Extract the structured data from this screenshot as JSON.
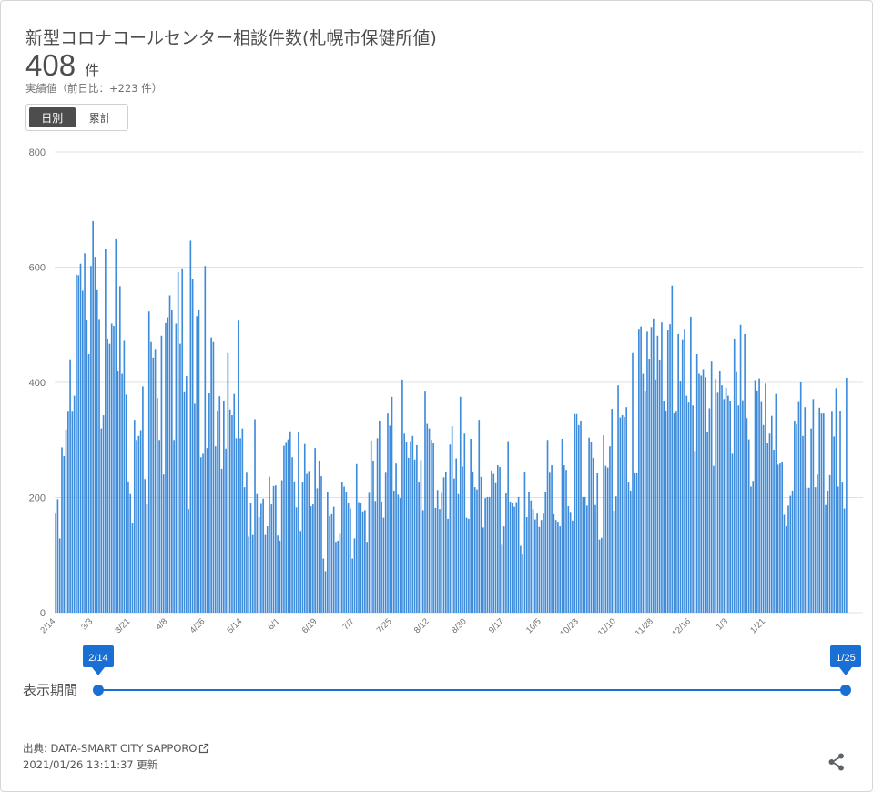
{
  "title": "新型コロナコールセンター相談件数(札幌市保健所値)",
  "summary": {
    "value": "408",
    "unit": "件",
    "subtitle": "実績値（前日比：+223 件）"
  },
  "toggle": {
    "daily": "日別",
    "cumulative": "累計"
  },
  "slider": {
    "label": "表示期間",
    "start": "2/14",
    "end": "1/25"
  },
  "footer": {
    "source": "出典: DATA-SMART CITY SAPPORO",
    "updated": "2021/01/26 13:11:37 更新"
  },
  "icons": {
    "external": "external-link-icon",
    "share": "share-icon"
  },
  "colors": {
    "bar": "#3d8bdb",
    "slider": "#1a6fd4",
    "toggle_active": "#4d4d4d"
  },
  "chart_data": {
    "type": "bar",
    "title": "",
    "xlabel": "",
    "ylabel": "",
    "ylim": [
      0,
      800
    ],
    "y_ticks": [
      0,
      200,
      400,
      600,
      800
    ],
    "x_tick_labels": [
      "2/14",
      "3/3",
      "3/21",
      "4/8",
      "4/26",
      "5/14",
      "6/1",
      "6/19",
      "7/7",
      "7/25",
      "8/12",
      "8/30",
      "9/17",
      "10/5",
      "10/23",
      "11/10",
      "11/28",
      "12/16",
      "1/3",
      "1/21"
    ],
    "x_tick_interval_days": 18,
    "grid": true,
    "series": [
      {
        "values": [
          172,
          197,
          129,
          287,
          272,
          318,
          349,
          440,
          349,
          377,
          587,
          586,
          606,
          559,
          624,
          508,
          449,
          602,
          680,
          618,
          560,
          510,
          320,
          343,
          632,
          476,
          467,
          502,
          498,
          650,
          420,
          567,
          415,
          472,
          379,
          228,
          206,
          156,
          335,
          300,
          307,
          317,
          393,
          232,
          188,
          523,
          470,
          443,
          458,
          373,
          300,
          481,
          240,
          503,
          513,
          551,
          525,
          300,
          502,
          591,
          467,
          598,
          383,
          411,
          180,
          646,
          579,
          363,
          515,
          525,
          270,
          276,
          602,
          286,
          381,
          478,
          470,
          289,
          351,
          376,
          250,
          368,
          285,
          451,
          353,
          343,
          380,
          303,
          507,
          303,
          320,
          218,
          243,
          132,
          190,
          135,
          336,
          206,
          166,
          189,
          198,
          135,
          150,
          236,
          188,
          220,
          221,
          134,
          125,
          230,
          290,
          295,
          301,
          315,
          270,
          228,
          183,
          314,
          142,
          226,
          293,
          241,
          246,
          185,
          188,
          286,
          216,
          264,
          237,
          94,
          72,
          209,
          168,
          171,
          184,
          123,
          125,
          137,
          227,
          219,
          210,
          191,
          181,
          94,
          129,
          258,
          192,
          191,
          176,
          178,
          123,
          208,
          299,
          264,
          194,
          303,
          333,
          193,
          165,
          243,
          346,
          325,
          375,
          212,
          259,
          205,
          199,
          405,
          311,
          296,
          269,
          298,
          307,
          266,
          291,
          226,
          265,
          178,
          384,
          328,
          320,
          300,
          294,
          182,
          213,
          180,
          208,
          235,
          244,
          163,
          292,
          324,
          233,
          268,
          206,
          375,
          254,
          311,
          165,
          163,
          302,
          244,
          218,
          214,
          335,
          236,
          148,
          199,
          201,
          201,
          247,
          241,
          225,
          256,
          253,
          118,
          150,
          207,
          298,
          193,
          190,
          184,
          192,
          201,
          116,
          101,
          245,
          166,
          209,
          195,
          180,
          162,
          172,
          149,
          161,
          172,
          209,
          300,
          243,
          256,
          171,
          161,
          158,
          150,
          302,
          256,
          248,
          185,
          175,
          160,
          345,
          345,
          326,
          333,
          201,
          201,
          186,
          304,
          297,
          269,
          187,
          242,
          127,
          130,
          308,
          255,
          252,
          289,
          354,
          177,
          202,
          395,
          339,
          343,
          340,
          357,
          226,
          212,
          451,
          242,
          242,
          493,
          497,
          415,
          385,
          488,
          441,
          496,
          511,
          405,
          481,
          438,
          504,
          368,
          351,
          490,
          501,
          568,
          346,
          349,
          484,
          402,
          475,
          493,
          377,
          365,
          514,
          360,
          281,
          449,
          415,
          412,
          423,
          409,
          314,
          355,
          436,
          255,
          406,
          382,
          420,
          395,
          371,
          391,
          377,
          367,
          276,
          476,
          418,
          360,
          500,
          369,
          484,
          338,
          301,
          219,
          229,
          404,
          386,
          407,
          366,
          326,
          398,
          294,
          311,
          342,
          283,
          380,
          257,
          259,
          261,
          170,
          150,
          186,
          203,
          212,
          333,
          327,
          366,
          400,
          307,
          357,
          217,
          217,
          320,
          371,
          218,
          240,
          356,
          346,
          346,
          187,
          212,
          239,
          349,
          306,
          390,
          219,
          351,
          226,
          181,
          408
        ]
      }
    ]
  }
}
